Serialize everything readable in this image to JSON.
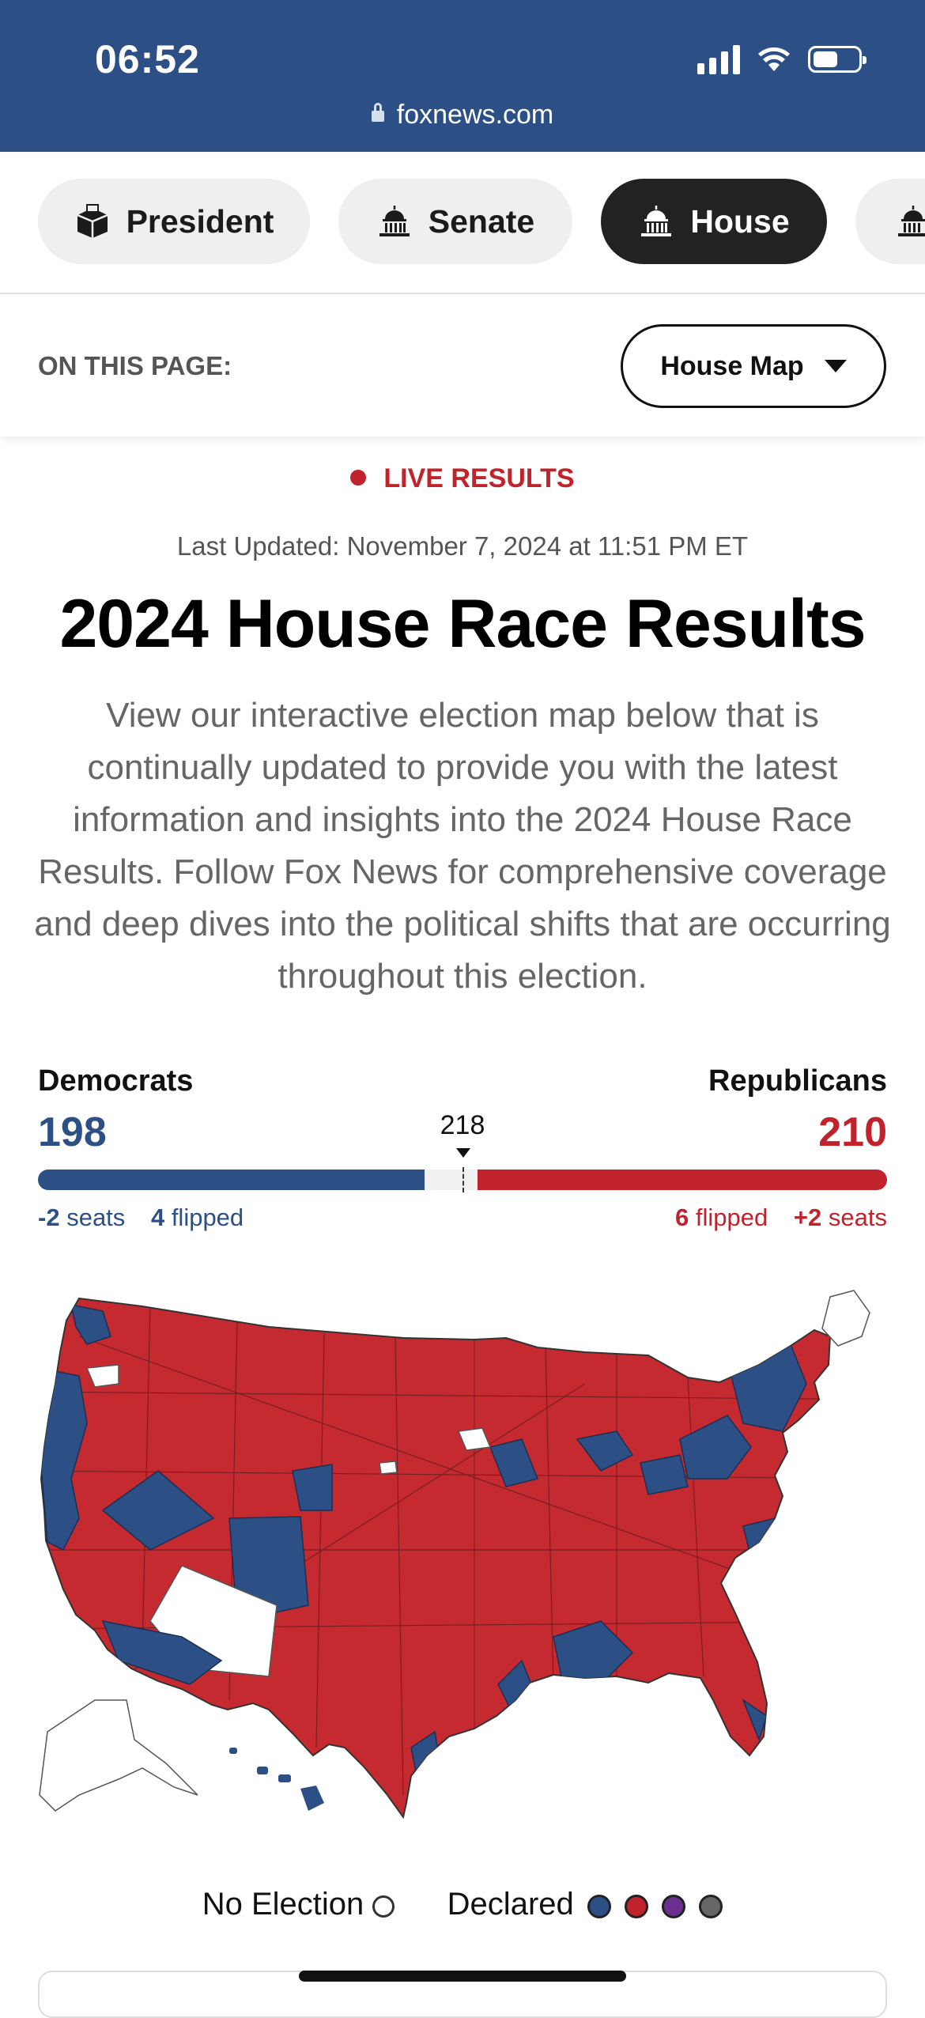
{
  "status_bar": {
    "time": "06:52"
  },
  "browser": {
    "url": "foxnews.com"
  },
  "race_tabs": [
    {
      "label": "President",
      "icon": "ballot-box-icon",
      "active": false
    },
    {
      "label": "Senate",
      "icon": "capitol-icon",
      "active": false
    },
    {
      "label": "House",
      "icon": "capitol-icon",
      "active": true
    }
  ],
  "on_this_page": {
    "label": "ON THIS PAGE:",
    "selected": "House Map"
  },
  "live_label": "LIVE RESULTS",
  "last_updated": "Last Updated: November 7, 2024 at 11:51 PM ET",
  "headline": "2024 House Race Results",
  "intro": "View our interactive election map below that is continually updated to provide you with the latest information and insights into the 2024 House Race Results. Follow Fox News for comprehensive coverage and deep dives into the political shifts that are occurring throughout this election.",
  "tally": {
    "total_seats": 435,
    "majority": "218",
    "democrats": {
      "name": "Democrats",
      "seats": "198",
      "seat_change": "-2",
      "seats_word": "seats",
      "flipped": "4",
      "flipped_word": "flipped",
      "color": "#2c4f86"
    },
    "republicans": {
      "name": "Republicans",
      "seats": "210",
      "seat_change": "+2",
      "seats_word": "seats",
      "flipped": "6",
      "flipped_word": "flipped",
      "color": "#c0232b"
    }
  },
  "legend": {
    "no_election": "No Election",
    "declared": "Declared",
    "colors": [
      "#2c4f86",
      "#c0232b",
      "#6b2f8e",
      "#666666"
    ]
  }
}
